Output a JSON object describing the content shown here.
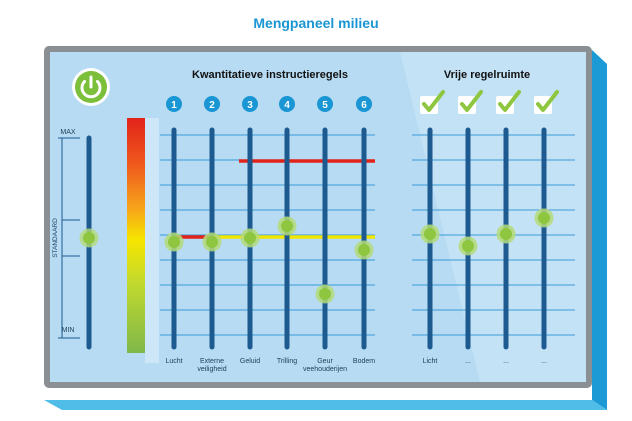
{
  "title": "Mengpaneel milieu",
  "sections": {
    "quantitative_heading": "Kwantitatieve instructieregels",
    "free_heading": "Vrije regelruimte"
  },
  "scale": {
    "max": "MAX",
    "standard": "STANDAARD",
    "min": "MIN",
    "level_pct": 50
  },
  "sliders": [
    {
      "number": "1",
      "label": "Lucht",
      "label2": "",
      "level_pct": 48
    },
    {
      "number": "2",
      "label": "Externe",
      "label2": "veiligheid",
      "level_pct": 48
    },
    {
      "number": "3",
      "label": "Geluid",
      "label2": "",
      "level_pct": 50
    },
    {
      "number": "4",
      "label": "Trilling",
      "label2": "",
      "level_pct": 56
    },
    {
      "number": "5",
      "label": "Geur",
      "label2": "veehouderijen",
      "level_pct": 22
    },
    {
      "number": "6",
      "label": "Bodem",
      "label2": "",
      "level_pct": 44
    }
  ],
  "free_sliders": [
    {
      "label": "Licht",
      "checked": true,
      "level_pct": 52
    },
    {
      "label": "...",
      "checked": true,
      "level_pct": 46
    },
    {
      "label": "...",
      "checked": true,
      "level_pct": 52
    },
    {
      "label": "...",
      "checked": true,
      "level_pct": 60
    }
  ],
  "colors": {
    "accent": "#1a96d4",
    "panel": "#b6dbf3",
    "panel_border": "#8a8f94",
    "track": "#1c5a8f",
    "knob": "#8ec640",
    "power": "#7bbf3a",
    "red_line": "#e2231a",
    "yellow_line": "#f2e600",
    "check": "#8ec640"
  }
}
